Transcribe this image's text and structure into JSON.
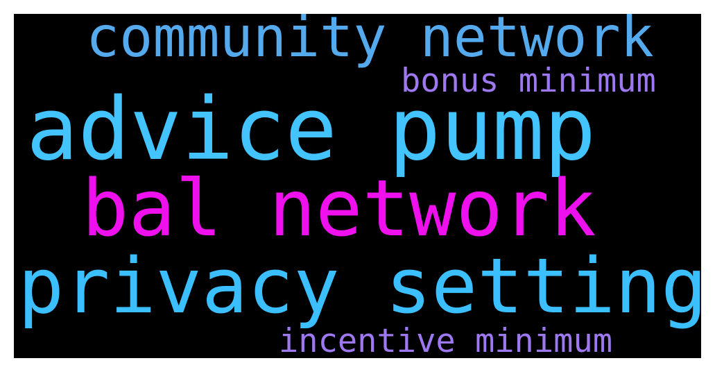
{
  "words": [
    {
      "id": "w-community",
      "text": "community network",
      "color": "#55aaee"
    },
    {
      "id": "w-bonus",
      "text": "bonus minimum",
      "color": "#9e78f0"
    },
    {
      "id": "w-advice",
      "text": "advice pump",
      "color": "#44c4ff"
    },
    {
      "id": "w-bal",
      "text": "bal network",
      "color": "#ee11ee"
    },
    {
      "id": "w-privacy",
      "text": "privacy setting",
      "color": "#3bbfff"
    },
    {
      "id": "w-incentive",
      "text": "incentive minimum",
      "color": "#9e78f0"
    }
  ]
}
